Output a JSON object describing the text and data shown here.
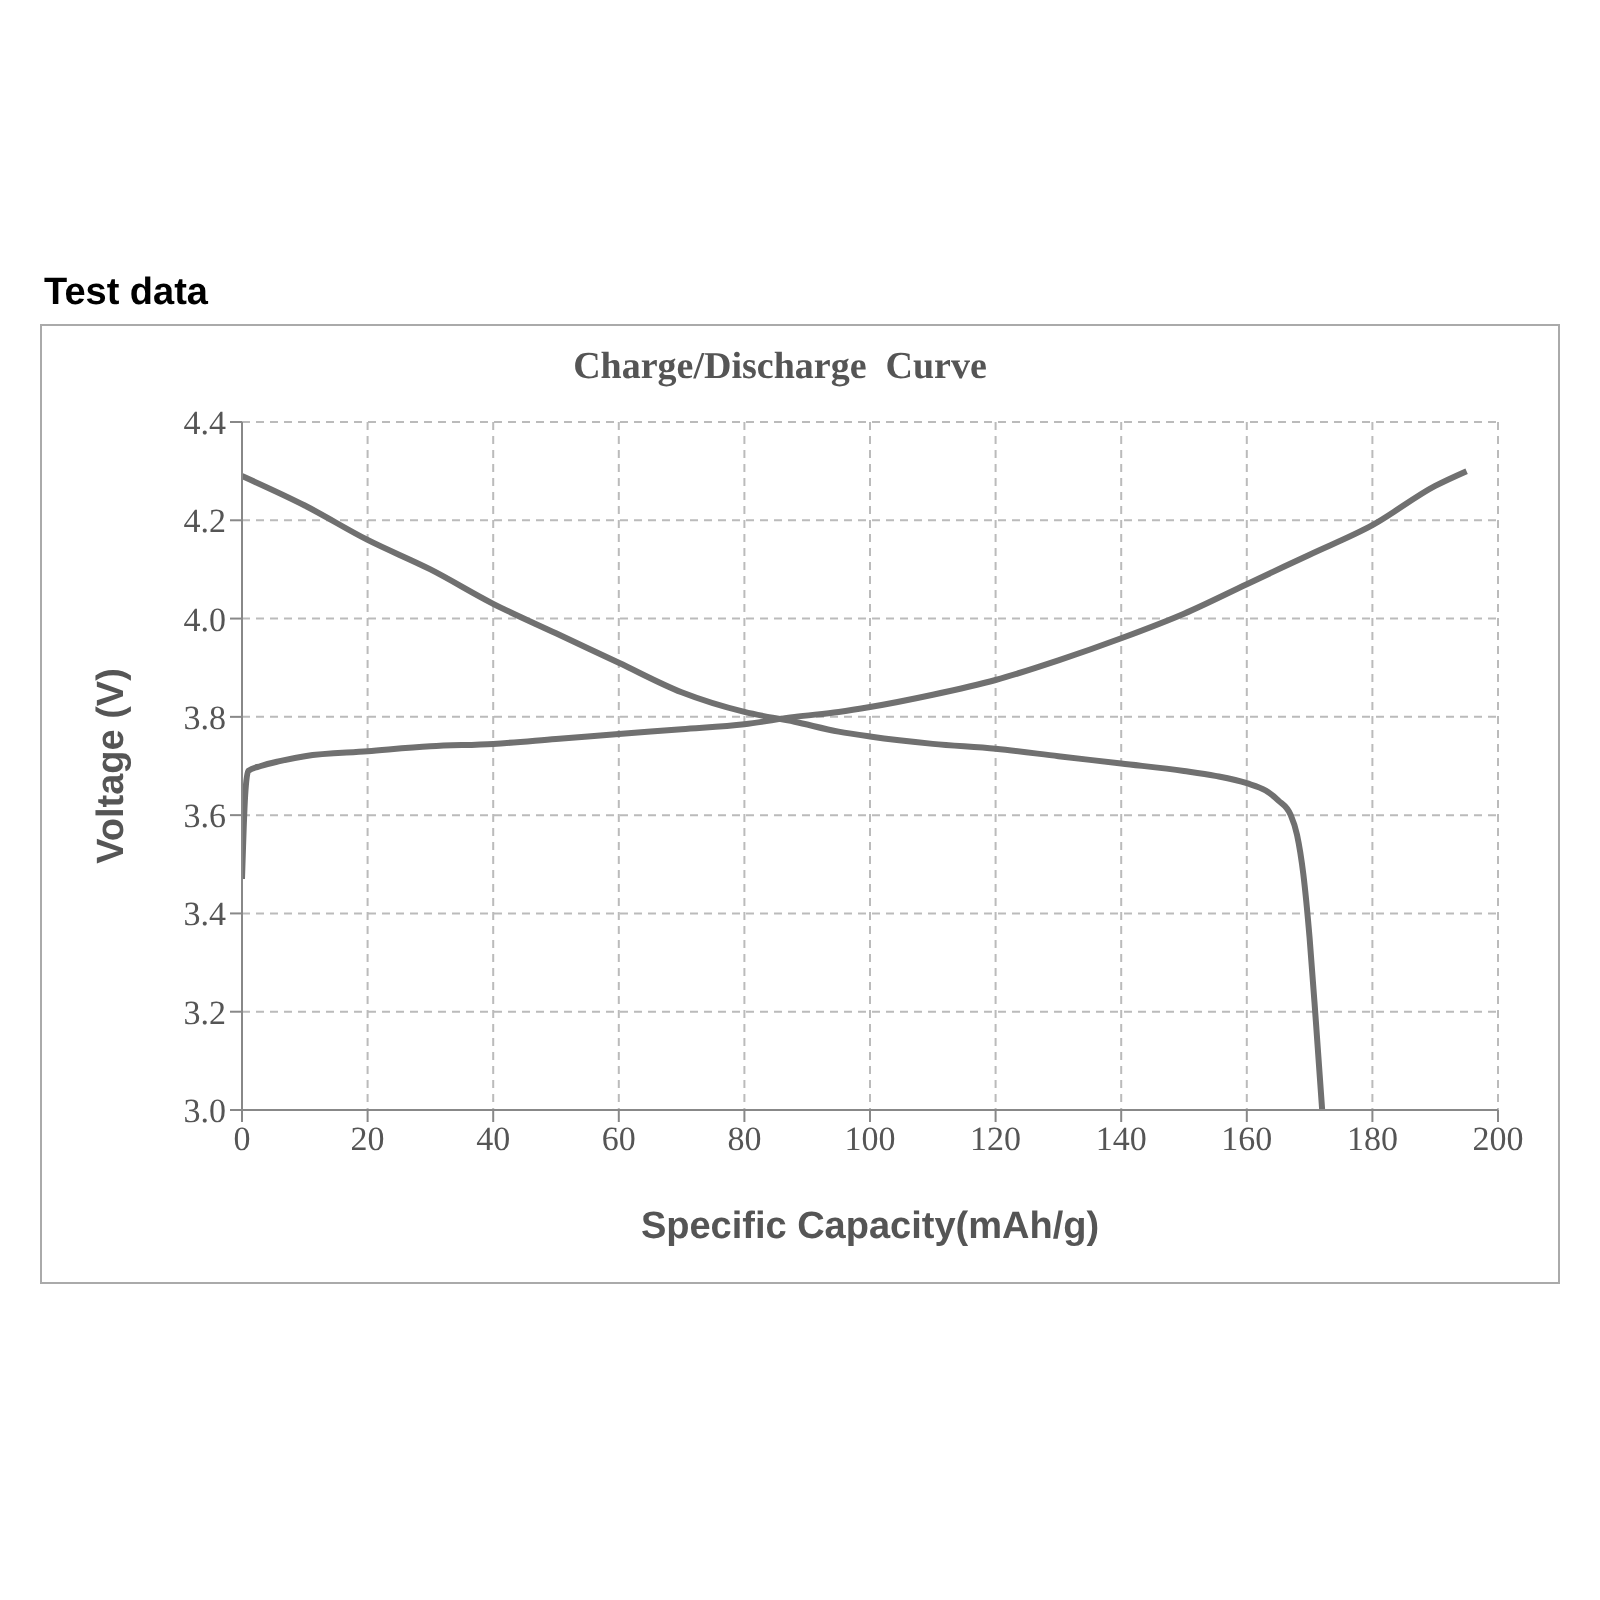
{
  "chart_data": {
    "type": "line",
    "title": "Test data",
    "subtitle": "Charge/Discharge  Curve",
    "xlabel": "Specific Capacity(mAh/g)",
    "ylabel": "Voltage (V)",
    "series": [
      {
        "color": "#707070",
        "x": [
          0,
          0.5,
          1,
          3,
          6,
          10,
          20,
          30,
          40,
          50,
          60,
          70,
          80,
          88,
          95,
          100,
          110,
          120,
          130,
          140,
          150,
          160,
          170,
          180,
          190,
          195
        ],
        "values": [
          3.47,
          3.64,
          3.69,
          3.7,
          3.71,
          3.72,
          3.73,
          3.74,
          3.745,
          3.755,
          3.765,
          3.775,
          3.785,
          3.8,
          3.81,
          3.82,
          3.845,
          3.875,
          3.915,
          3.96,
          4.01,
          4.07,
          4.13,
          4.19,
          4.27,
          4.3
        ]
      },
      {
        "color": "#707070",
        "x": [
          0,
          10,
          20,
          30,
          40,
          50,
          60,
          70,
          80,
          88,
          95,
          100,
          110,
          120,
          130,
          140,
          150,
          155,
          160,
          163,
          165,
          167,
          168,
          169,
          170,
          171,
          172
        ],
        "values": [
          4.29,
          4.23,
          4.16,
          4.1,
          4.03,
          3.97,
          3.91,
          3.85,
          3.81,
          3.79,
          3.77,
          3.76,
          3.745,
          3.735,
          3.72,
          3.705,
          3.69,
          3.68,
          3.665,
          3.65,
          3.63,
          3.6,
          3.56,
          3.48,
          3.35,
          3.18,
          3.0
        ]
      }
    ],
    "xlim": [
      0,
      200
    ],
    "xticks": [
      0,
      20,
      40,
      60,
      80,
      100,
      120,
      140,
      160,
      180,
      200
    ],
    "ylim": [
      3.0,
      4.4
    ],
    "yticks": [
      {
        "value": 3.0,
        "label": "3.0"
      },
      3.2,
      3.4,
      3.6,
      3.8,
      {
        "value": 4.0,
        "label": "4.0"
      },
      4.2,
      4.4
    ],
    "grid": true,
    "legend": false,
    "marker": "none",
    "line_style": "solid"
  }
}
